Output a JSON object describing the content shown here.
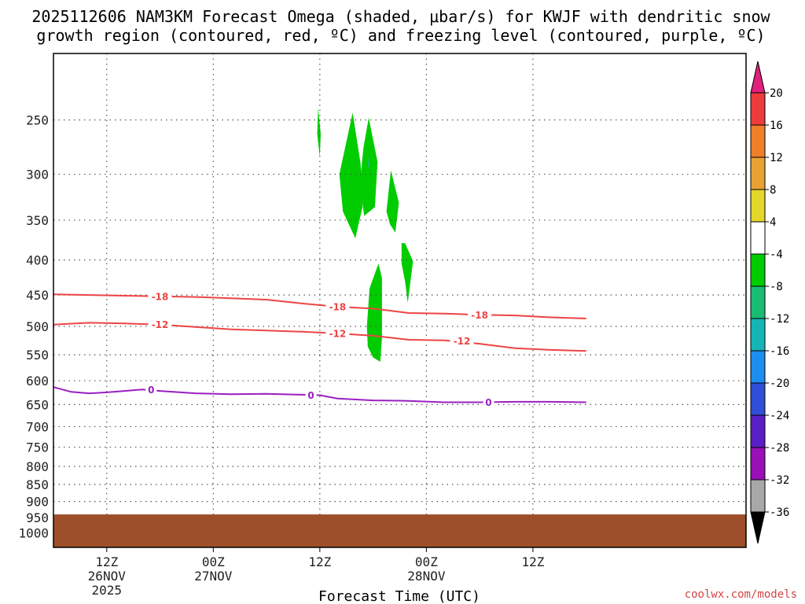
{
  "title": {
    "line1": "2025112606 NAM3KM Forecast Omega (shaded, μbar/s) for KWJF with dendritic snow",
    "line2": "growth region (contoured, red, ºC) and freezing level (contoured, purple, ºC)"
  },
  "credit": "coolwx.com/models",
  "chart_data": {
    "type": "time-height cross-section",
    "title": "2025112606 NAM3KM Forecast Omega (shaded, μbar/s) for KWJF with dendritic snow growth region (contoured, red, ºC) and freezing level (contoured, purple, ºC)",
    "xlabel": "Forecast Time (UTC)",
    "ylabel": "",
    "x_range_hours": [
      6,
      84
    ],
    "y_scale": "log-pressure",
    "y_range_hpa": [
      200,
      1050
    ],
    "grid": true,
    "y_ticks": [
      250,
      300,
      350,
      400,
      450,
      500,
      550,
      600,
      650,
      700,
      750,
      800,
      850,
      900,
      950,
      1000
    ],
    "x_ticks": [
      {
        "hour": 12,
        "lines": [
          "12Z",
          "26NOV",
          "2025"
        ]
      },
      {
        "hour": 24,
        "lines": [
          "00Z",
          "27NOV"
        ]
      },
      {
        "hour": 36,
        "lines": [
          "12Z"
        ]
      },
      {
        "hour": 48,
        "lines": [
          "00Z",
          "28NOV"
        ]
      },
      {
        "hour": 60,
        "lines": [
          "12Z"
        ]
      }
    ],
    "colorbar": {
      "labels": [
        "20",
        "16",
        "12",
        "8",
        "4",
        "-4",
        "-8",
        "-12",
        "-16",
        "-20",
        "-24",
        "-28",
        "-32",
        "-36"
      ],
      "top_arrow_color": "#e0207a",
      "bottom_arrow_color": "#000000",
      "band_colors": [
        "#ee3c3c",
        "#ef7f28",
        "#e9a132",
        "#e4d72a",
        "#ffffff",
        "#00cc00",
        "#19bc73",
        "#16b5b5",
        "#1c8eef",
        "#2f4fd9",
        "#5a1ec6",
        "#9a0fb8",
        "#a8a8a8"
      ]
    },
    "series": [
      {
        "name": "-18",
        "kind": "dendritic contour",
        "color": "#ee4444",
        "points": [
          [
            6,
            449
          ],
          [
            10,
            450
          ],
          [
            14,
            451
          ],
          [
            18,
            452
          ],
          [
            22,
            453
          ],
          [
            26,
            455
          ],
          [
            30,
            457
          ],
          [
            34,
            463
          ],
          [
            38,
            468
          ],
          [
            42,
            471
          ],
          [
            46,
            478
          ],
          [
            50,
            479
          ],
          [
            54,
            481
          ],
          [
            58,
            482
          ],
          [
            62,
            485
          ],
          [
            66,
            487
          ]
        ],
        "labels": [
          [
            18,
            452
          ],
          [
            38,
            468
          ],
          [
            54,
            481
          ]
        ]
      },
      {
        "name": "-12",
        "kind": "dendritic contour",
        "color": "#ee4444",
        "points": [
          [
            6,
            497
          ],
          [
            10,
            494
          ],
          [
            14,
            495
          ],
          [
            18,
            497
          ],
          [
            22,
            501
          ],
          [
            26,
            505
          ],
          [
            30,
            507
          ],
          [
            34,
            509
          ],
          [
            38,
            512
          ],
          [
            42,
            516
          ],
          [
            46,
            523
          ],
          [
            50,
            524
          ],
          [
            54,
            530
          ],
          [
            58,
            538
          ],
          [
            62,
            541
          ],
          [
            66,
            543
          ]
        ],
        "labels": [
          [
            18,
            497
          ],
          [
            38,
            512
          ],
          [
            52,
            525
          ]
        ]
      },
      {
        "name": "0",
        "kind": "freezing level",
        "color": "#9b1fc1",
        "points": [
          [
            6,
            613
          ],
          [
            8,
            623
          ],
          [
            10,
            626
          ],
          [
            12,
            624
          ],
          [
            14,
            621
          ],
          [
            16,
            618
          ],
          [
            18,
            621
          ],
          [
            22,
            626
          ],
          [
            26,
            628
          ],
          [
            30,
            627
          ],
          [
            34,
            629
          ],
          [
            36,
            630
          ],
          [
            38,
            637
          ],
          [
            42,
            641
          ],
          [
            46,
            642
          ],
          [
            50,
            645
          ],
          [
            54,
            645
          ],
          [
            58,
            644
          ],
          [
            62,
            644
          ],
          [
            66,
            645
          ]
        ],
        "labels": [
          [
            17,
            618
          ],
          [
            35,
            630
          ],
          [
            55,
            645
          ]
        ]
      }
    ],
    "omega_regions": [
      {
        "range": "-8 to -4",
        "color": "#00cc00",
        "points": [
          [
            35.8,
            240
          ],
          [
            36.1,
            262
          ],
          [
            36.0,
            283
          ],
          [
            35.7,
            262
          ]
        ]
      },
      {
        "range": "-8 to -4",
        "color": "#00cc00",
        "points": [
          [
            39.7,
            244
          ],
          [
            40.6,
            290
          ],
          [
            40.8,
            335
          ],
          [
            40.0,
            372
          ],
          [
            38.6,
            340
          ],
          [
            38.2,
            300
          ]
        ]
      },
      {
        "range": "-8 to -4",
        "color": "#00cc00",
        "points": [
          [
            41.5,
            248
          ],
          [
            42.5,
            288
          ],
          [
            42.2,
            335
          ],
          [
            41.0,
            345
          ],
          [
            40.5,
            310
          ],
          [
            40.9,
            275
          ]
        ]
      },
      {
        "range": "-12 to -8",
        "color": "#19bc73",
        "points": [
          [
            41.5,
            281
          ],
          [
            41.6,
            292
          ],
          [
            41.4,
            293
          ]
        ]
      },
      {
        "range": "-8 to -4",
        "color": "#00cc00",
        "points": [
          [
            44.0,
            296
          ],
          [
            44.9,
            330
          ],
          [
            44.5,
            365
          ],
          [
            43.9,
            355
          ],
          [
            43.5,
            340
          ]
        ]
      },
      {
        "range": "-8 to -4",
        "color": "#00cc00",
        "points": [
          [
            45.6,
            378
          ],
          [
            46.5,
            402
          ],
          [
            46.2,
            430
          ],
          [
            45.9,
            462
          ],
          [
            45.6,
            430
          ],
          [
            45.2,
            405
          ],
          [
            45.2,
            378
          ]
        ]
      },
      {
        "range": "-8 to -4",
        "color": "#00cc00",
        "points": [
          [
            42.6,
            405
          ],
          [
            43.0,
            425
          ],
          [
            43.0,
            520
          ],
          [
            42.8,
            563
          ],
          [
            42.0,
            555
          ],
          [
            41.4,
            535
          ],
          [
            41.3,
            500
          ],
          [
            41.6,
            440
          ]
        ]
      }
    ],
    "terrain": {
      "color": "#9d4f2a",
      "surface_hpa": 940
    }
  }
}
